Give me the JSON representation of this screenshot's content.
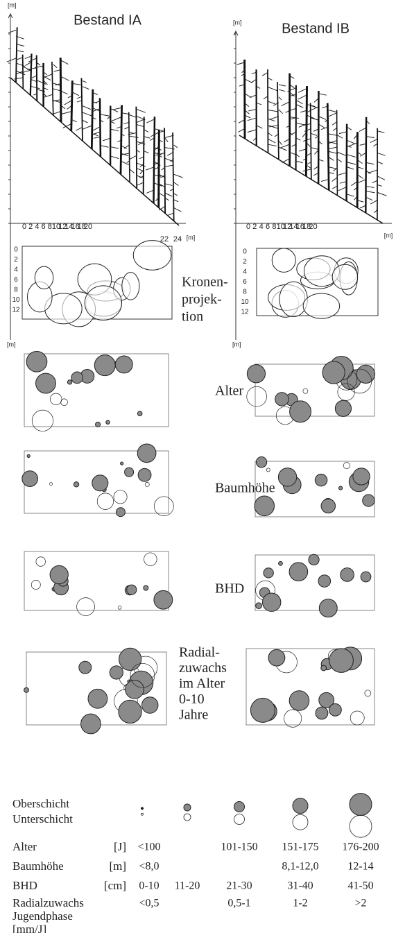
{
  "stands": [
    {
      "title": "Bestand IA",
      "profile_unit": "[m]",
      "x_ticks": [
        0,
        2,
        4,
        6,
        8,
        10,
        12,
        14,
        16,
        18,
        20,
        22,
        24
      ],
      "x_unit": "[m]",
      "map_y_ticks": [
        0,
        2,
        4,
        6,
        8,
        10,
        12
      ],
      "map_unit": "[m]"
    },
    {
      "title": "Bestand IB",
      "profile_unit": "[m]",
      "x_ticks": [
        0,
        2,
        4,
        6,
        8,
        10,
        12,
        14,
        16,
        18,
        20
      ],
      "x_unit": "[m]",
      "map_y_ticks": [
        0,
        2,
        4,
        6,
        8,
        10,
        12
      ],
      "map_unit": "[m]"
    }
  ],
  "panels": [
    {
      "label": [
        "Kronen-",
        "projek-",
        "tion"
      ]
    },
    {
      "label": [
        "Alter"
      ]
    },
    {
      "label": [
        "Baumhöhe"
      ]
    },
    {
      "label": [
        "BHD"
      ]
    },
    {
      "label": [
        "Radial-",
        "zuwachs",
        "im Alter",
        "0-10",
        "Jahre"
      ]
    }
  ],
  "legend": {
    "layers": [
      "Oberschicht",
      "Unterschicht"
    ],
    "rows": [
      {
        "label": [
          "Alter"
        ],
        "unit": "[J]",
        "cells": [
          "<100",
          null,
          "101-150",
          "151-175",
          "176-200"
        ]
      },
      {
        "label": [
          "Baumhöhe"
        ],
        "unit": "[m]",
        "cells": [
          "<8,0",
          null,
          null,
          "8,1-12,0",
          "12-14"
        ]
      },
      {
        "label": [
          "BHD"
        ],
        "unit": "[cm]",
        "cells": [
          "0-10",
          "11-20",
          "21-30",
          "31-40",
          "41-50"
        ]
      },
      {
        "label": [
          "Radialzuwachs",
          "Jugendphase",
          "[mm/J]"
        ],
        "cells": [
          "<0,5",
          null,
          "0,5-1",
          "1-2",
          ">2"
        ]
      }
    ]
  }
}
